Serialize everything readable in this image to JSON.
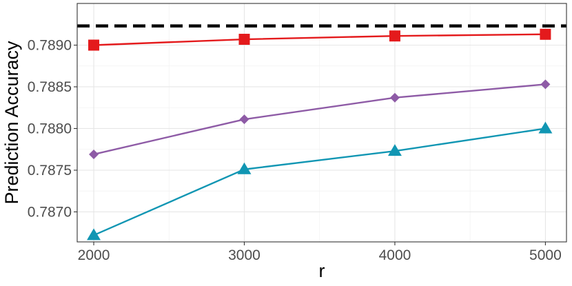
{
  "chart_data": {
    "type": "line",
    "title": "",
    "xlabel": "r",
    "ylabel": "Prediction Accuracy",
    "x": [
      2000,
      3000,
      4000,
      5000
    ],
    "x_ticks": [
      "2000",
      "3000",
      "4000",
      "5000"
    ],
    "y_ticks": [
      "0.7870",
      "0.7875",
      "0.7880",
      "0.7885",
      "0.7890"
    ],
    "xlim": [
      1890,
      5140
    ],
    "ylim": [
      0.78664,
      0.7895
    ],
    "grid": true,
    "reference_line": {
      "y": 0.78923,
      "style": "dashed",
      "color": "#000000"
    },
    "series": [
      {
        "color": "#e41a1c",
        "marker": "square",
        "values": [
          0.789,
          0.78907,
          0.78911,
          0.78913
        ]
      },
      {
        "color": "#8e5ba6",
        "marker": "diamond",
        "values": [
          0.78769,
          0.78811,
          0.78837,
          0.78853
        ]
      },
      {
        "color": "#1196b3",
        "marker": "triangle",
        "values": [
          0.78672,
          0.78751,
          0.78773,
          0.788
        ]
      }
    ]
  }
}
